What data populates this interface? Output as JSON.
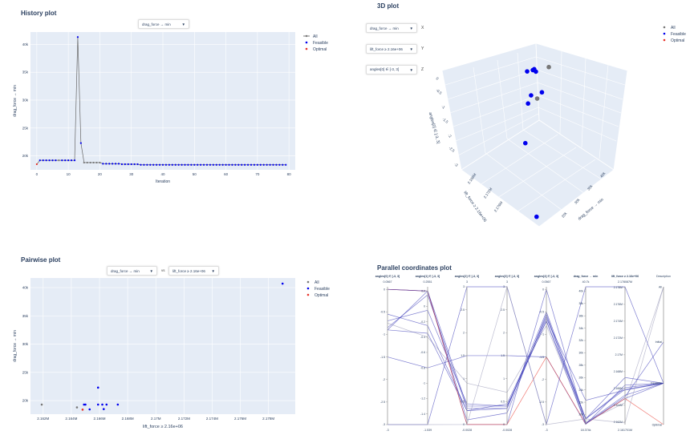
{
  "history": {
    "title": "History plot",
    "dropdown": "drag_force → min",
    "legend": [
      "All",
      "Feasible",
      "Optimal"
    ]
  },
  "plot3d": {
    "title": "3D plot",
    "dropdowns": [
      {
        "value": "drag_force → min",
        "axis": "X"
      },
      {
        "value": "lift_force ≥ 2.16e+06",
        "axis": "Y"
      },
      {
        "value": "angles[0] ∈ [-3, 3]",
        "axis": "Z"
      }
    ],
    "legend": [
      "All",
      "Feasible",
      "Optimal"
    ]
  },
  "pairwise": {
    "title": "Pairwise plot",
    "dropdown_y": "drag_force → min",
    "vs": "vs",
    "dropdown_x": "lift_force ≥ 2.16e+06",
    "legend": [
      "All",
      "Feasible",
      "Optimal"
    ]
  },
  "parallel": {
    "title": "Parallel coordinates plot"
  },
  "colors": {
    "all": "#777777",
    "feasible": "#0000ee",
    "optimal": "#e8332a",
    "plot_bg": "#e5ecf6",
    "grid": "#ffffff",
    "pc_line": "#3a3ab8"
  },
  "chart_data": [
    {
      "type": "line",
      "title": "History plot",
      "xlabel": "Iteration",
      "ylabel": "drag_force → min",
      "xlim": [
        -2,
        82
      ],
      "ylim": [
        17500,
        42200
      ],
      "xticks": [
        0,
        10,
        20,
        30,
        40,
        50,
        60,
        70,
        80
      ],
      "yticks": [
        20000,
        25000,
        30000,
        35000,
        40000
      ],
      "ytick_labels": [
        "20k",
        "25k",
        "30k",
        "35k",
        "40k"
      ],
      "values": [
        18500,
        19200,
        19200,
        19200,
        19200,
        19200,
        19200,
        19200,
        19200,
        19200,
        19200,
        19200,
        19200,
        41300,
        22300,
        18800,
        18800,
        18800,
        18800,
        18800,
        18800,
        18600,
        18600,
        18600,
        18600,
        18600,
        18600,
        18500,
        18500,
        18500,
        18500,
        18500,
        18500,
        18400,
        18400,
        18400,
        18400,
        18400,
        18400,
        18400,
        18400,
        18400,
        18400,
        18400,
        18400,
        18400,
        18400,
        18400,
        18400,
        18400,
        18400,
        18400,
        18400,
        18400,
        18400,
        18400,
        18400,
        18400,
        18400,
        18400,
        18400,
        18400,
        18400,
        18400,
        18400,
        18400,
        18400,
        18400,
        18400,
        18400,
        18400,
        18400,
        18400,
        18400,
        18400,
        18400,
        18400,
        18400,
        18400,
        18400
      ],
      "infeasible_iterations": [
        7,
        15,
        16,
        17,
        18,
        19,
        20
      ],
      "optimal_iterations": [
        0
      ]
    },
    {
      "type": "scatter3d",
      "title": "3D plot",
      "xlabel": "drag_force → min",
      "ylabel": "lift_force ≥ 2.16e+06",
      "zlabel": "angles[0] ∈ [-3, 3]",
      "xticks_labels": [
        "20k",
        "30k",
        "35k",
        "40k"
      ],
      "yticks_labels": [
        "2.168M",
        "2.172M",
        "2.176M"
      ],
      "zticks": [
        0,
        -0.5,
        -1,
        -1.5,
        -2,
        -2.5,
        -3
      ],
      "xlim": [
        18000,
        42000
      ],
      "ylim": [
        2164000.0,
        2180000.0
      ],
      "zlim": [
        -3,
        0
      ],
      "points": [
        {
          "x": 19300,
          "y": 2161900.0,
          "z": -0.05,
          "cat": "All"
        },
        {
          "x": 18800,
          "y": 2164300.0,
          "z": -0.65,
          "cat": "All"
        },
        {
          "x": 18500,
          "y": 2164800.0,
          "z": -0.1,
          "cat": "Feasible"
        },
        {
          "x": 18600,
          "y": 2165200.0,
          "z": -0.12,
          "cat": "Feasible"
        },
        {
          "x": 18400,
          "y": 2166400.0,
          "z": -0.15,
          "cat": "Feasible"
        },
        {
          "x": 19300,
          "y": 2165000.0,
          "z": -0.15,
          "cat": "Feasible"
        },
        {
          "x": 22300,
          "y": 2165800.0,
          "z": -0.55,
          "cat": "Feasible"
        },
        {
          "x": 19300,
          "y": 2166100.0,
          "z": -0.6,
          "cat": "Feasible"
        },
        {
          "x": 18500,
          "y": 2166200.0,
          "z": -0.75,
          "cat": "Feasible"
        },
        {
          "x": 19300,
          "y": 2167300.0,
          "z": -1.5,
          "cat": "Feasible"
        },
        {
          "x": 40700,
          "y": 2179000.0,
          "z": -3,
          "cat": "Feasible"
        }
      ]
    },
    {
      "type": "scatter",
      "title": "Pairwise plot",
      "xlabel": "lift_force ≥ 2.16e+06",
      "ylabel": "drag_force → min",
      "xlim": [
        2161100.0,
        2179900.0
      ],
      "ylim": [
        17600,
        41700
      ],
      "xticks": [
        2162000.0,
        2164000.0,
        2166000.0,
        2168000.0,
        2170000.0,
        2172000.0,
        2174000.0,
        2176000.0,
        2178000.0
      ],
      "xtick_labels": [
        "2.162M",
        "2.164M",
        "2.166M",
        "2.168M",
        "2.17M",
        "2.172M",
        "2.174M",
        "2.176M",
        "2.178M"
      ],
      "yticks": [
        20000,
        25000,
        30000,
        35000,
        40000
      ],
      "ytick_labels": [
        "20k",
        "25k",
        "30k",
        "35k",
        "40k"
      ],
      "points": [
        {
          "x": 2161900.0,
          "y": 19300,
          "cat": "All"
        },
        {
          "x": 2164400.0,
          "y": 18800,
          "cat": "All"
        },
        {
          "x": 2164900.0,
          "y": 19300,
          "cat": "Feasible"
        },
        {
          "x": 2165000.0,
          "y": 19300,
          "cat": "Feasible"
        },
        {
          "x": 2165300.0,
          "y": 18450,
          "cat": "Feasible"
        },
        {
          "x": 2165900.0,
          "y": 22300,
          "cat": "Feasible"
        },
        {
          "x": 2165900.0,
          "y": 19300,
          "cat": "Feasible"
        },
        {
          "x": 2166200.0,
          "y": 19300,
          "cat": "Feasible"
        },
        {
          "x": 2166300.0,
          "y": 18500,
          "cat": "Feasible"
        },
        {
          "x": 2166500.0,
          "y": 19300,
          "cat": "Feasible"
        },
        {
          "x": 2167300.0,
          "y": 19300,
          "cat": "Feasible"
        },
        {
          "x": 2179000.0,
          "y": 40700,
          "cat": "Feasible"
        },
        {
          "x": 2164800.0,
          "y": 18400,
          "cat": "Optimal"
        }
      ]
    },
    {
      "type": "parallel_coordinates",
      "title": "Parallel coordinates plot",
      "axes": [
        {
          "label": "angles[0] ∈ [-3, 3]",
          "range": [
            -3,
            0.0567
          ],
          "top_label": "0.0567",
          "bottom_label": "-3",
          "ticks": [
            0,
            -0.5,
            -1,
            -1.5,
            -2,
            -2.5,
            -3
          ]
        },
        {
          "label": "angles[1] ∈ [-3, 3]",
          "range": [
            -1.539,
            0.2551
          ],
          "top_label": "0.2551",
          "bottom_label": "-1.539",
          "ticks": [
            0.2,
            0,
            -0.2,
            -0.4,
            -0.6,
            -0.8,
            -1,
            -1.2,
            -1.4
          ]
        },
        {
          "label": "angles[2] ∈ [-3, 3]",
          "range": [
            -0.0028,
            3
          ],
          "top_label": "3",
          "bottom_label": "-0.0028",
          "ticks": [
            0,
            0.5,
            1,
            1.5,
            2,
            2.5,
            3
          ]
        },
        {
          "label": "angles[3] ∈ [-3, 3]",
          "range": [
            -0.0028,
            3
          ],
          "top_label": "3",
          "bottom_label": "-0.0028",
          "ticks": [
            0,
            0.5,
            1,
            1.5,
            2,
            2.5,
            3
          ]
        },
        {
          "label": "angles[4] ∈ [-3, 3]",
          "range": [
            -3,
            0.0567
          ],
          "top_label": "0.0567",
          "bottom_label": "-3",
          "ticks": [
            0,
            -0.5,
            -1,
            -1.5,
            -2,
            -2.5,
            -3
          ]
        },
        {
          "label": "drag_force → min",
          "range": [
            18374,
            40700
          ],
          "top_label": "40.7k",
          "bottom_label": "18.374k",
          "ticks": [
            20000,
            22000,
            24000,
            26000,
            28000,
            30000,
            32000,
            34000,
            36000,
            38000,
            40000
          ],
          "tick_labels": [
            "20k",
            "22k",
            "24k",
            "26k",
            "28k",
            "30k",
            "32k",
            "34k",
            "36k",
            "38k",
            "40k"
          ]
        },
        {
          "label": "lift_force ≥ 2.16e+06",
          "range": [
            2161701,
            2178087
          ],
          "top_label": "2.178087M",
          "bottom_label": "2.161701M",
          "ticks": [
            2162000,
            2164000,
            2166000,
            2168000,
            2170000,
            2172000,
            2174000,
            2176000,
            2178000
          ],
          "tick_labels": [
            "2.162M",
            "2.164M",
            "2.166M",
            "2.168M",
            "2.17M",
            "2.172M",
            "2.174M",
            "2.176M",
            "2.178M"
          ]
        },
        {
          "label": "Description",
          "categorical": [
            "All",
            "Initial",
            "Feasible",
            "Optimal"
          ],
          "positions": [
            1,
            0.6,
            0.3,
            0
          ]
        }
      ],
      "records": [
        {
          "v": [
            0,
            0.2,
            0.0,
            0.0,
            0,
            18500,
            2164800
          ],
          "desc": "Feasible"
        },
        {
          "v": [
            -0.9,
            0.2,
            0.1,
            0.25,
            -0.55,
            18600,
            2165200
          ],
          "desc": "Feasible"
        },
        {
          "v": [
            -0.85,
            0.15,
            0.35,
            0.35,
            -0.6,
            19300,
            2165900
          ],
          "desc": "Feasible"
        },
        {
          "v": [
            -0.7,
            -0.05,
            0.45,
            0.4,
            -0.7,
            19300,
            2166100
          ],
          "desc": "Feasible"
        },
        {
          "v": [
            -0.55,
            -0.25,
            0.3,
            0.45,
            -0.65,
            22300,
            2165800
          ],
          "desc": "Feasible"
        },
        {
          "v": [
            -0.75,
            -0.4,
            0.9,
            0.7,
            -0.8,
            18800,
            2164300
          ],
          "desc": "All"
        },
        {
          "v": [
            -1.5,
            -0.8,
            1.5,
            1.5,
            -1.5,
            18400,
            2166400
          ],
          "desc": "Feasible"
        },
        {
          "v": [
            -0.9,
            -0.35,
            0.3,
            0.35,
            -0.5,
            19300,
            2167300
          ],
          "desc": "Feasible"
        },
        {
          "v": [
            0,
            0.2,
            0,
            0,
            -1.5,
            18500,
            2164800
          ],
          "desc": "Optimal"
        },
        {
          "v": [
            -3,
            -1.539,
            3,
            3,
            -3,
            40700,
            2178087
          ],
          "desc": "Feasible"
        },
        {
          "v": [
            -3,
            -1.539,
            0,
            3,
            -3,
            19300,
            2161900
          ],
          "desc": "All"
        },
        {
          "v": [
            0,
            0.2,
            0.4,
            0.4,
            -0.7,
            18500,
            2165000
          ],
          "desc": "Initial"
        }
      ]
    }
  ]
}
